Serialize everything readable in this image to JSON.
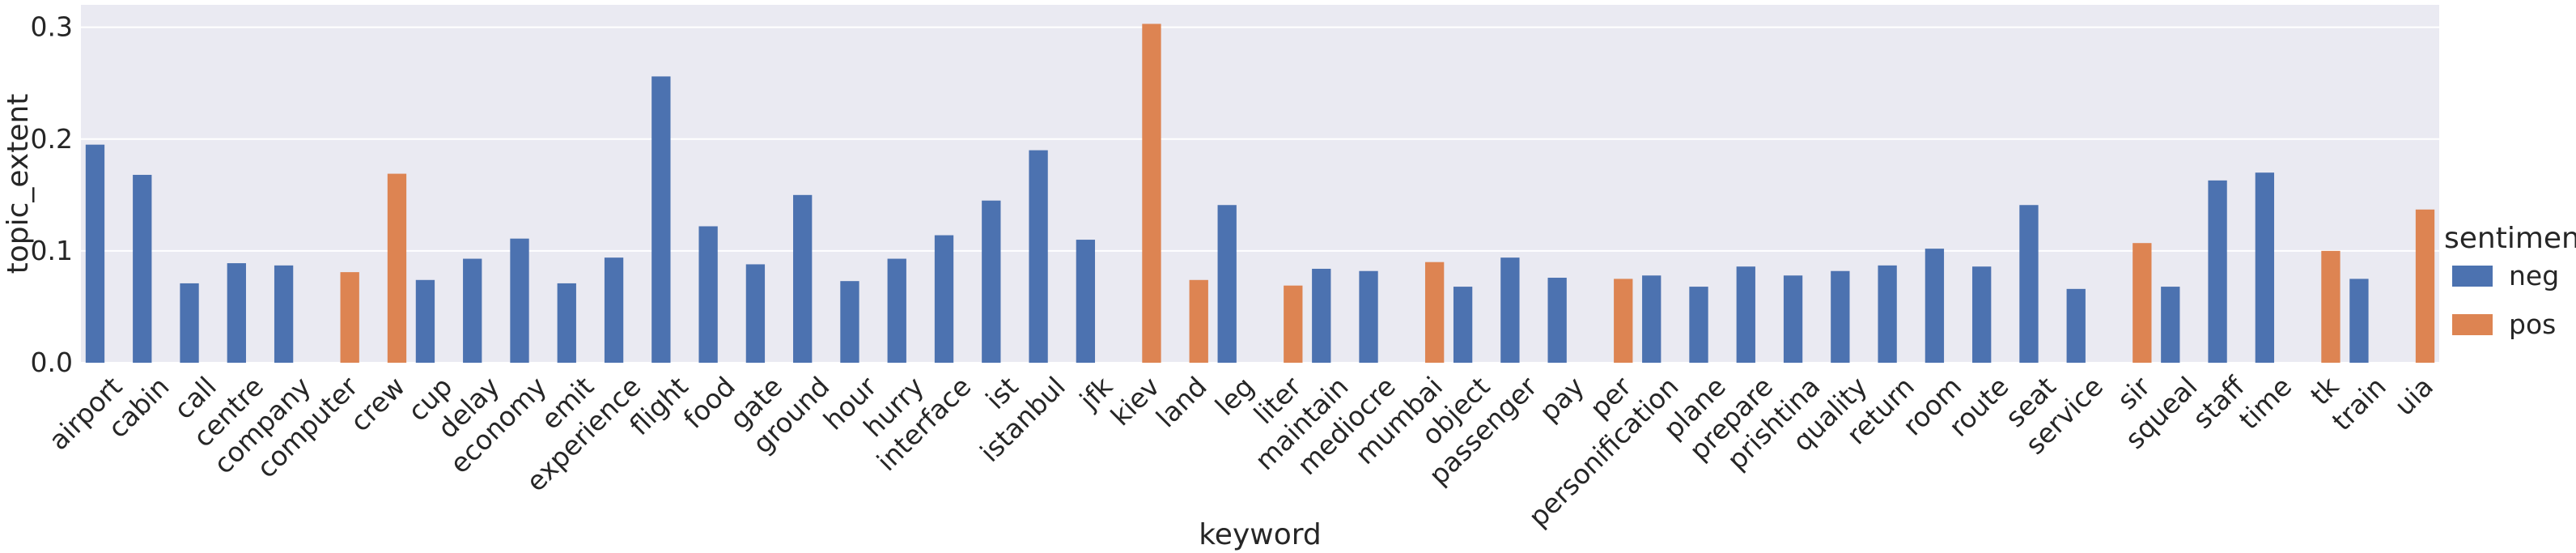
{
  "chart_data": {
    "type": "bar",
    "xlabel": "keyword",
    "ylabel": "topic_extent",
    "ylim": [
      0,
      0.32
    ],
    "yticks": [
      "0.0",
      "0.1",
      "0.2",
      "0.3"
    ],
    "ytick_values": [
      0.0,
      0.1,
      0.2,
      0.3
    ],
    "grid": true,
    "legend_title": "sentiment",
    "legend_position": "right",
    "colors": {
      "neg": "#4c72b0",
      "pos": "#dd8452",
      "background": "#eaeaf2",
      "grid": "#ffffff"
    },
    "categories": [
      "airport",
      "cabin",
      "call",
      "centre",
      "company",
      "computer",
      "crew",
      "cup",
      "delay",
      "economy",
      "emit",
      "experience",
      "flight",
      "food",
      "gate",
      "ground",
      "hour",
      "hurry",
      "interface",
      "ist",
      "istanbul",
      "jfk",
      "kiev",
      "land",
      "leg",
      "liter",
      "maintain",
      "mediocre",
      "mumbai",
      "object",
      "passenger",
      "pay",
      "per",
      "personification",
      "plane",
      "prepare",
      "prishtina",
      "quality",
      "return",
      "room",
      "route",
      "seat",
      "service",
      "sir",
      "squeal",
      "staff",
      "time",
      "tk",
      "train",
      "uia"
    ],
    "series": [
      {
        "name": "neg",
        "values": [
          0.195,
          0.168,
          0.071,
          0.089,
          0.087,
          null,
          null,
          0.074,
          0.093,
          0.111,
          0.071,
          0.094,
          0.256,
          0.122,
          0.088,
          0.15,
          0.073,
          0.093,
          0.114,
          0.145,
          0.19,
          0.11,
          null,
          null,
          0.141,
          null,
          0.084,
          0.082,
          null,
          0.068,
          0.094,
          0.076,
          null,
          0.078,
          0.068,
          0.086,
          0.078,
          0.082,
          0.087,
          0.102,
          0.086,
          0.141,
          0.066,
          null,
          0.068,
          0.163,
          0.17,
          null,
          0.075,
          null
        ]
      },
      {
        "name": "pos",
        "values": [
          null,
          null,
          null,
          null,
          null,
          0.081,
          0.169,
          null,
          null,
          null,
          null,
          null,
          null,
          null,
          null,
          null,
          null,
          null,
          null,
          null,
          null,
          null,
          0.303,
          0.074,
          null,
          0.069,
          null,
          null,
          0.09,
          null,
          null,
          null,
          0.075,
          null,
          null,
          null,
          null,
          null,
          null,
          null,
          null,
          null,
          null,
          0.107,
          null,
          null,
          null,
          0.1,
          null,
          0.137
        ]
      }
    ]
  }
}
